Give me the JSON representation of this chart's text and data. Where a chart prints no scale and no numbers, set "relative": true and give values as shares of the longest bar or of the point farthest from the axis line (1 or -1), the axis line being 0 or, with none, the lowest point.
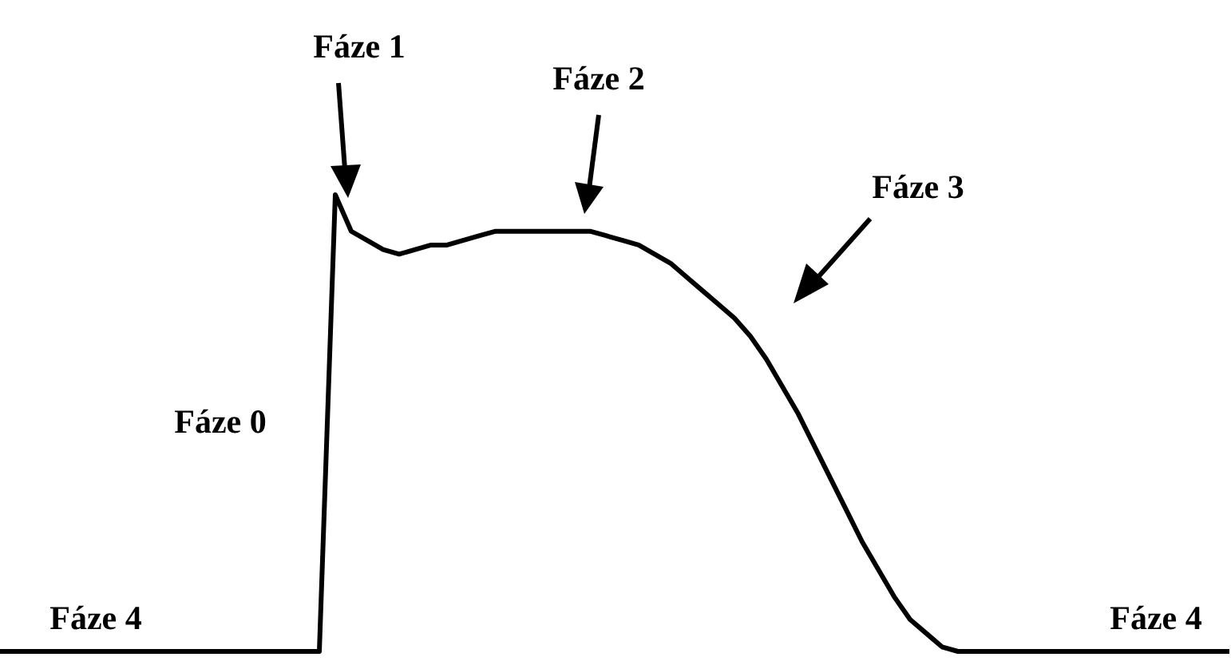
{
  "chart_data": {
    "type": "line",
    "relative": true,
    "color": "#000000",
    "line_style": "solid",
    "marker": "none",
    "categories": [
      null,
      null,
      null,
      null,
      null,
      null,
      null,
      null,
      null,
      null,
      null,
      null,
      null,
      null,
      null,
      null,
      null,
      null,
      null,
      null,
      null,
      null,
      null,
      null,
      null,
      null,
      null,
      null,
      null,
      null,
      null,
      null,
      null,
      null,
      null,
      null,
      null,
      null,
      null,
      null,
      null,
      null,
      null,
      null,
      null,
      null,
      null,
      null,
      null,
      null,
      null,
      null,
      null,
      null,
      null,
      null,
      null,
      null,
      null,
      null,
      null,
      null,
      null,
      null,
      null,
      null,
      null,
      null,
      null,
      null,
      null,
      null,
      null,
      null,
      null,
      null,
      null,
      null
    ],
    "values": [
      0,
      0,
      0,
      0,
      0,
      0,
      0,
      0,
      0,
      0,
      0,
      0,
      0,
      0,
      0,
      0,
      0,
      0,
      0,
      0,
      0,
      1,
      0.92,
      0.9,
      0.88,
      0.87,
      0.88,
      0.89,
      0.89,
      0.9,
      0.91,
      0.92,
      0.92,
      0.92,
      0.92,
      0.92,
      0.92,
      0.92,
      0.91,
      0.9,
      0.89,
      0.87,
      0.85,
      0.82,
      0.79,
      0.76,
      0.73,
      0.69,
      0.64,
      0.58,
      0.52,
      0.45,
      0.38,
      0.31,
      0.24,
      0.18,
      0.12,
      0.07,
      0.04,
      0.01,
      0,
      0,
      0,
      0,
      0,
      0,
      0,
      0,
      0,
      0,
      0,
      0,
      0,
      0,
      0,
      0,
      0,
      0
    ],
    "annotations": [
      "Fáze 1",
      "Fáze 2",
      "Fáze 3",
      "Fáze 0",
      "Fáze 4",
      "Fáze 4"
    ]
  }
}
